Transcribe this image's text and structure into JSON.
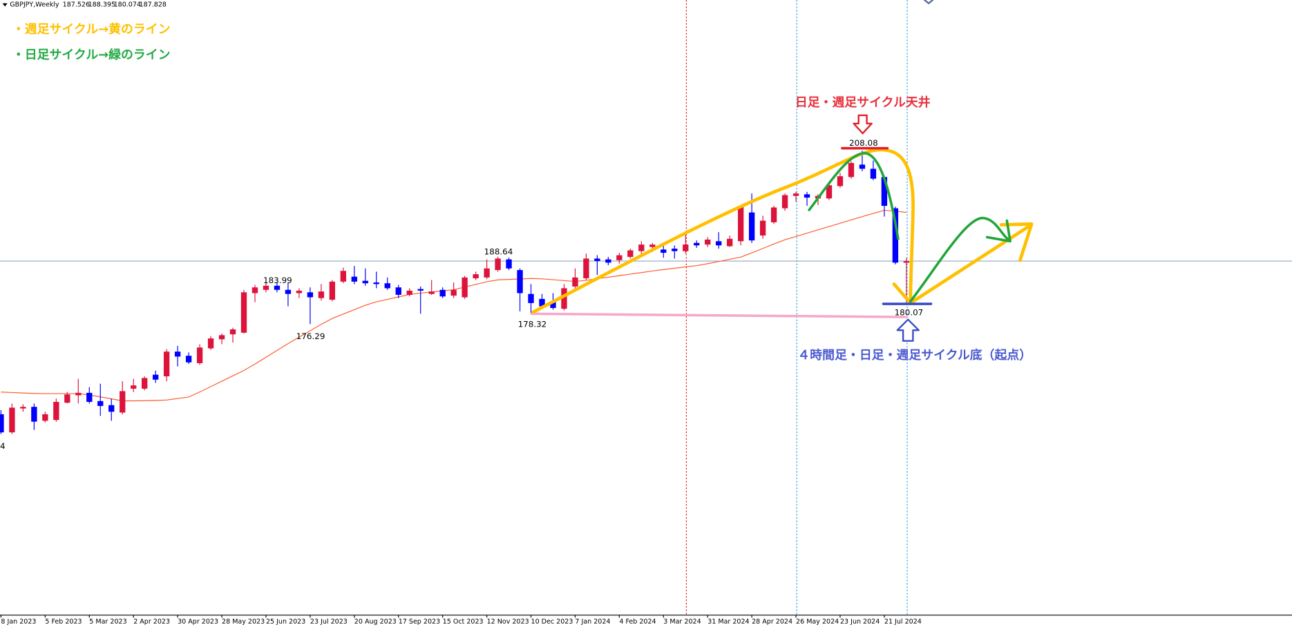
{
  "chart_data": {
    "type": "candlestick",
    "symbol": "GBPJPY,Weekly",
    "categories": [
      "8 Jan 2023",
      null,
      null,
      null,
      "5 Feb 2023",
      null,
      null,
      null,
      "5 Mar 2023",
      null,
      null,
      null,
      "2 Apr 2023",
      null,
      null,
      null,
      "30 Apr 2023",
      null,
      null,
      null,
      "28 May 2023",
      null,
      null,
      null,
      "25 Jun 2023",
      null,
      null,
      null,
      "23 Jul 2023",
      null,
      null,
      null,
      "20 Aug 2023",
      null,
      null,
      null,
      "17 Sep 2023",
      null,
      null,
      null,
      "15 Oct 2023",
      null,
      null,
      null,
      "12 Nov 2023",
      null,
      null,
      null,
      "10 Dec 2023",
      null,
      null,
      null,
      "7 Jan 2024",
      null,
      null,
      null,
      "4 Feb 2024",
      null,
      null,
      null,
      "3 Mar 2024",
      null,
      null,
      null,
      "31 Mar 2024",
      null,
      null,
      null,
      "28 Apr 2024",
      null,
      null,
      null,
      "26 May 2024",
      null,
      null,
      null,
      "23 Jun 2024",
      null,
      null,
      null,
      "21 Jul 2024",
      null,
      null
    ],
    "open": [
      159.73,
      156.41,
      160.79,
      161.09,
      158.53,
      158.68,
      161.85,
      163.21,
      163.66,
      162.15,
      161.4,
      160.04,
      164.42,
      164.42,
      166.99,
      166.69,
      171.22,
      170.46,
      169.1,
      171.82,
      173.48,
      174.39,
      174.69,
      181.95,
      182.55,
      183.31,
      182.55,
      181.95,
      182.1,
      181.04,
      180.74,
      184.06,
      184.97,
      184.21,
      183.91,
      183.76,
      183.0,
      181.64,
      182.7,
      181.8,
      182.55,
      181.49,
      181.19,
      184.67,
      184.82,
      186.18,
      188.14,
      186.18,
      181.8,
      180.89,
      180.28,
      179.08,
      183.16,
      184.67,
      188.29,
      188.14,
      187.99,
      188.59,
      189.65,
      190.41,
      189.95,
      190.11,
      189.65,
      191.16,
      190.86,
      191.47,
      190.56,
      191.47,
      196.75,
      192.52,
      194.94,
      197.51,
      199.78,
      200.08,
      199.32,
      199.32,
      201.59,
      203.25,
      205.52,
      204.76,
      203.25,
      197.51,
      187.526
    ],
    "high": [
      160.49,
      161.7,
      161.55,
      161.7,
      160.19,
      162.61,
      163.81,
      166.23,
      164.72,
      165.33,
      162.61,
      165.78,
      166.23,
      166.69,
      167.74,
      171.67,
      172.28,
      171.07,
      172.58,
      174.09,
      174.54,
      175.6,
      182.55,
      183.46,
      183.91,
      183.99,
      183.91,
      182.85,
      183.0,
      183.61,
      184.36,
      186.63,
      186.93,
      186.48,
      185.88,
      184.82,
      183.46,
      182.85,
      183.16,
      184.36,
      183.0,
      183.91,
      185.12,
      185.88,
      188.14,
      188.64,
      188.44,
      186.48,
      183.61,
      181.8,
      181.95,
      183.61,
      186.48,
      189.2,
      188.9,
      188.59,
      189.35,
      190.11,
      191.47,
      191.16,
      191.01,
      190.71,
      193.28,
      191.62,
      192.22,
      193.13,
      192.52,
      198.11,
      200.23,
      196.15,
      197.96,
      200.23,
      200.53,
      200.53,
      200.08,
      202.19,
      204.01,
      206.12,
      208.08,
      206.27,
      203.55,
      197.81,
      188.395
    ],
    "low": [
      156.11,
      156.11,
      160.19,
      156.86,
      158.22,
      158.37,
      161.7,
      161.7,
      161.7,
      159.43,
      158.53,
      159.73,
      163.81,
      164.12,
      165.48,
      165.78,
      168.5,
      168.95,
      168.8,
      171.52,
      172.58,
      172.88,
      174.54,
      180.28,
      182.1,
      182.1,
      179.53,
      181.04,
      176.29,
      180.59,
      180.44,
      183.76,
      183.61,
      183.31,
      182.85,
      182.55,
      181.04,
      181.34,
      178.17,
      181.64,
      181.04,
      181.04,
      180.89,
      184.36,
      184.52,
      185.88,
      186.18,
      178.62,
      178.32,
      179.23,
      178.92,
      178.77,
      182.85,
      184.36,
      185.27,
      187.08,
      187.39,
      188.29,
      188.9,
      189.5,
      188.44,
      188.29,
      189.2,
      190.26,
      190.41,
      190.11,
      190.41,
      190.71,
      191.16,
      191.92,
      194.64,
      197.06,
      198.72,
      197.96,
      198.11,
      199.02,
      201.29,
      202.95,
      204.31,
      202.65,
      196.0,
      187.23,
      180.074
    ],
    "close": [
      156.41,
      160.94,
      161.09,
      158.37,
      159.73,
      162.0,
      163.36,
      163.66,
      162.0,
      161.25,
      160.19,
      163.97,
      165.02,
      166.38,
      166.08,
      171.22,
      170.31,
      169.25,
      171.97,
      173.64,
      174.24,
      175.3,
      182.1,
      183.0,
      183.31,
      182.55,
      181.8,
      182.4,
      181.19,
      182.25,
      184.06,
      186.03,
      184.06,
      183.76,
      183.61,
      182.85,
      181.64,
      182.4,
      182.4,
      182.25,
      181.34,
      182.55,
      184.82,
      185.42,
      186.48,
      188.29,
      186.48,
      181.95,
      180.13,
      179.53,
      179.23,
      182.85,
      184.82,
      188.29,
      187.84,
      187.54,
      188.9,
      189.8,
      190.86,
      190.86,
      189.35,
      189.65,
      190.86,
      190.71,
      191.77,
      190.71,
      191.92,
      197.81,
      191.62,
      195.24,
      197.66,
      199.93,
      200.23,
      199.47,
      199.78,
      201.74,
      203.4,
      205.82,
      204.76,
      202.95,
      197.96,
      187.54,
      187.828
    ],
    "up_color": "#dc143c",
    "down_color": "#0000ff",
    "ma": {
      "color": "#ff5a2a",
      "values": [
        163.8,
        163.72,
        163.63,
        163.55,
        163.51,
        163.51,
        163.51,
        163.51,
        163.28,
        162.92,
        162.55,
        162.19,
        162.19,
        162.22,
        162.27,
        162.34,
        162.62,
        162.89,
        163.82,
        164.8,
        165.79,
        166.77,
        167.76,
        168.93,
        170.18,
        171.44,
        172.69,
        173.87,
        175.04,
        176.22,
        177.3,
        178.11,
        178.92,
        179.73,
        180.36,
        180.8,
        181.25,
        181.7,
        181.96,
        182.16,
        182.36,
        182.57,
        183.06,
        183.54,
        184.03,
        184.39,
        184.47,
        184.55,
        184.64,
        184.57,
        184.41,
        184.25,
        184.08,
        184.3,
        184.59,
        184.87,
        185.15,
        185.44,
        185.72,
        186.01,
        186.27,
        186.51,
        186.76,
        186.99,
        187.35,
        187.75,
        188.16,
        188.56,
        189.34,
        190.15,
        190.96,
        191.74,
        192.35,
        192.95,
        193.56,
        194.16,
        194.77,
        195.38,
        195.99,
        196.57,
        197.14,
        197.0,
        196.75
      ]
    },
    "ylim": [
      122.88,
      235.72
    ],
    "price_labels": [
      208.08,
      188.64,
      183.99,
      176.29,
      178.32,
      180.07
    ],
    "edge_label": "4",
    "annotations": {
      "weekly_cycle": "・週足サイクル→黄のライン",
      "daily_cycle": "・日足サイクル→緑のライン",
      "top": "日足・週足サイクル天井",
      "bottom": "４時間足・日足・週足サイクル底（起点）"
    }
  }
}
